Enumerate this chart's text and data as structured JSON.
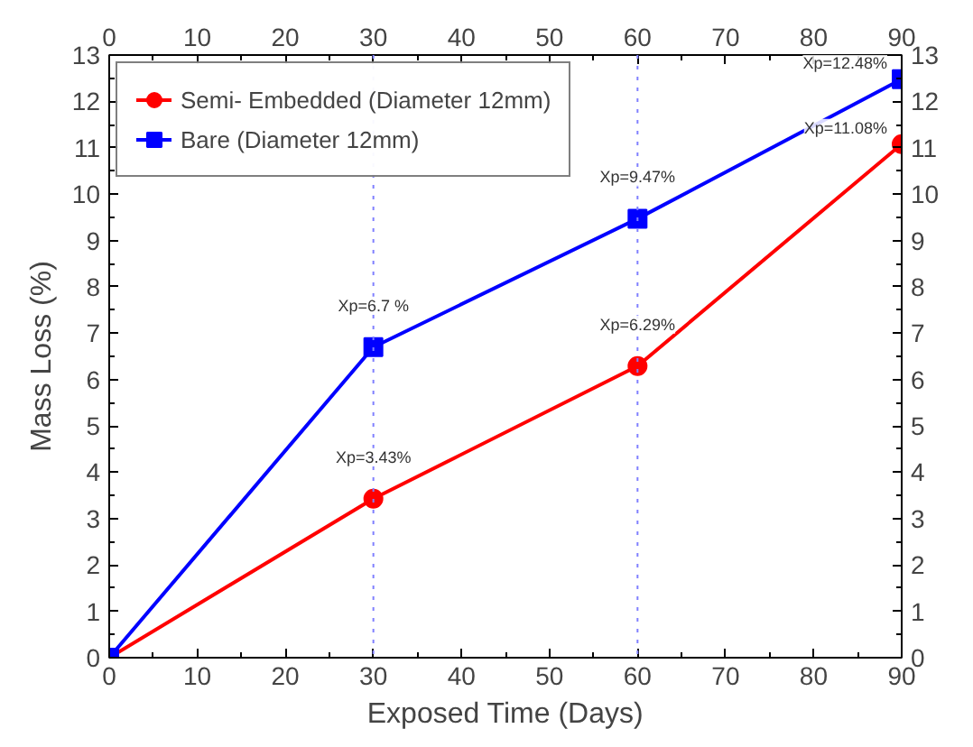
{
  "chart_data": {
    "type": "line",
    "xlabel": "Exposed Time (Days)",
    "ylabel": "Mass Loss (%)",
    "x": [
      0,
      30,
      60,
      90
    ],
    "series": [
      {
        "name": "Semi- Embedded (Diameter 12mm)",
        "color": "#ff0000",
        "marker": "circle",
        "values": [
          0,
          3.43,
          6.29,
          11.08
        ]
      },
      {
        "name": "Bare (Diameter 12mm)",
        "color": "#0000ff",
        "marker": "square",
        "values": [
          0,
          6.7,
          9.47,
          12.48
        ]
      }
    ],
    "xlim": [
      0,
      90
    ],
    "xticks": [
      0,
      10,
      20,
      30,
      40,
      50,
      60,
      70,
      80,
      90
    ],
    "x2lim": [
      0,
      90
    ],
    "x2ticks": [
      0,
      10,
      20,
      30,
      40,
      50,
      60,
      70,
      80,
      90
    ],
    "ylim": [
      0,
      13
    ],
    "yticks": [
      0,
      1,
      2,
      3,
      4,
      5,
      6,
      7,
      8,
      9,
      10,
      11,
      12,
      13
    ],
    "y2lim": [
      0,
      13
    ],
    "y2ticks": [
      0,
      1,
      2,
      3,
      4,
      5,
      6,
      7,
      8,
      9,
      10,
      11,
      12,
      13
    ],
    "ref_lines": [
      {
        "axis": "x",
        "value": 30,
        "color": "#8080ff",
        "line_style": "dotted"
      },
      {
        "axis": "x",
        "value": 60,
        "color": "#8080ff",
        "line_style": "dotted"
      }
    ],
    "annotations": [
      {
        "text": "Xp=6.7 %",
        "x": 30,
        "y": 6.7
      },
      {
        "text": "Xp=3.43%",
        "x": 30,
        "y": 3.43
      },
      {
        "text": "Xp=9.47%",
        "x": 60,
        "y": 9.47
      },
      {
        "text": "Xp=6.29%",
        "x": 60,
        "y": 6.29
      },
      {
        "text": "Xp=12.48%",
        "x": 90,
        "y": 12.48
      },
      {
        "text": "Xp=11.08%",
        "x": 90,
        "y": 11.08
      }
    ],
    "grid": false,
    "legend": "top left",
    "line_style": "solid"
  }
}
